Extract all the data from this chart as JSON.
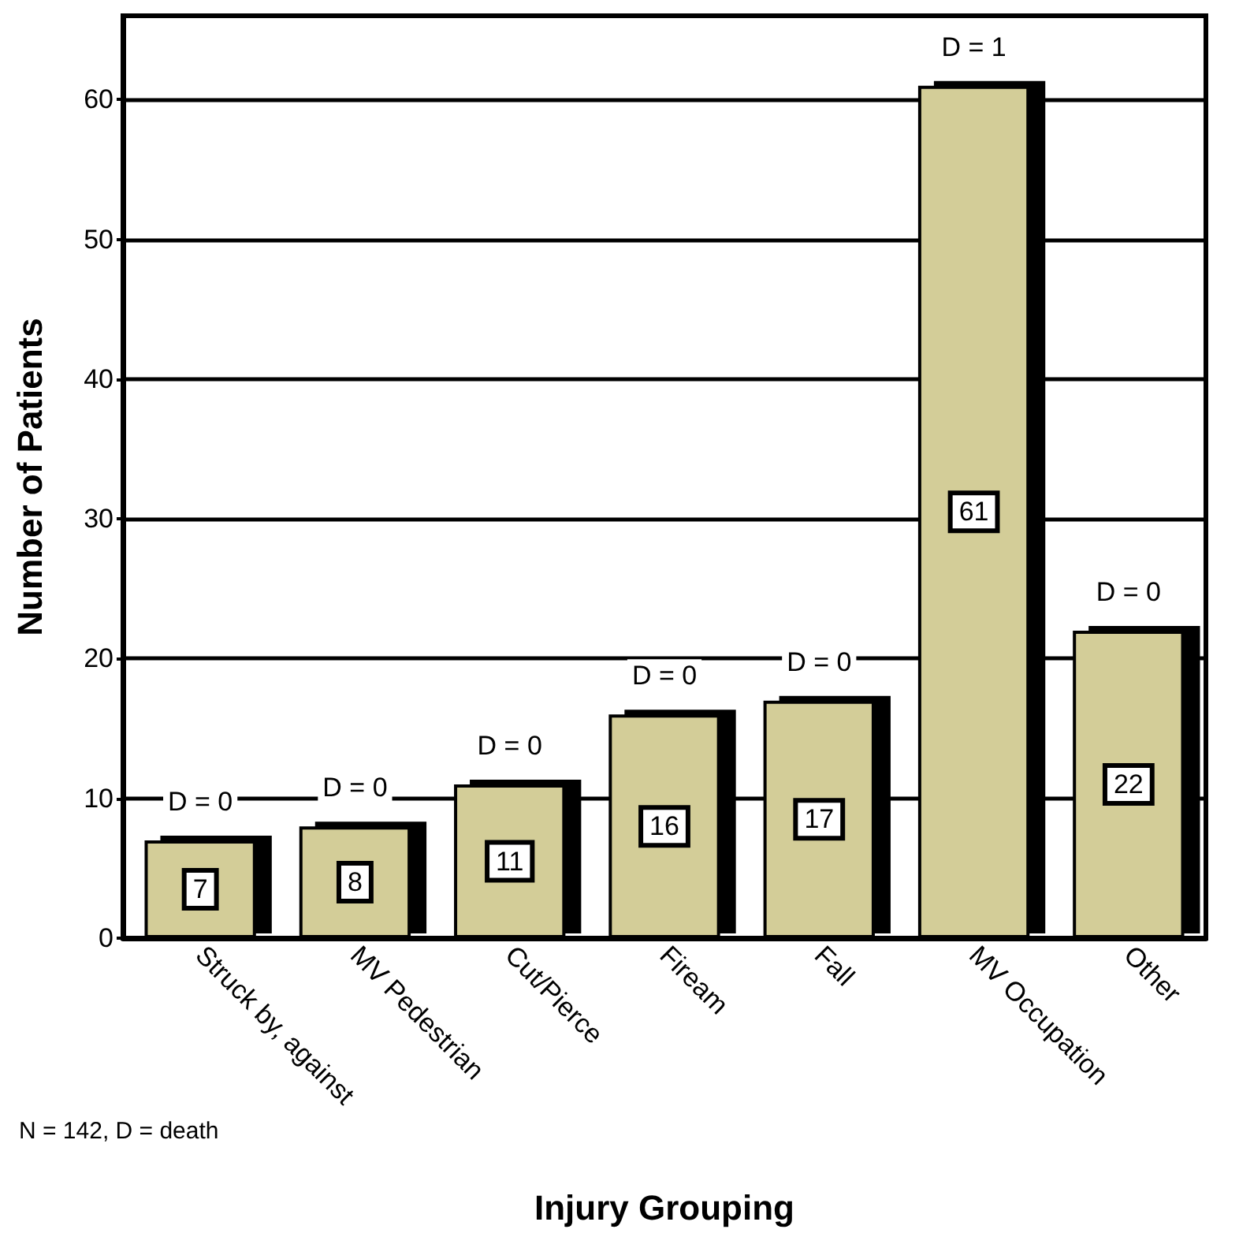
{
  "chart_data": {
    "type": "bar",
    "xlabel": "Injury Grouping",
    "ylabel": "Number of Patients",
    "categories": [
      "Struck by, against",
      "MV Pedestrian",
      "Cut/Pierce",
      "Fiream",
      "Fall",
      "MV Occupation",
      "Other"
    ],
    "values": [
      7,
      8,
      11,
      16,
      17,
      61,
      22
    ],
    "color": "#d3cd98",
    "data_labels": true,
    "ylim": [
      0,
      66
    ],
    "yticks": [
      0,
      10,
      20,
      30,
      40,
      50,
      60
    ],
    "grid": "y",
    "annotations": [
      {
        "text": "D = 0",
        "x": "Struck by, against",
        "y": 7
      },
      {
        "text": "D = 0",
        "x": "MV Pedestrian",
        "y": 8
      },
      {
        "text": "D = 0",
        "x": "Cut/Pierce",
        "y": 11
      },
      {
        "text": "D = 0",
        "x": "Fiream",
        "y": 16
      },
      {
        "text": "D = 0",
        "x": "Fall",
        "y": 17
      },
      {
        "text": "D = 1",
        "x": "MV Occupation",
        "y": 61
      },
      {
        "text": "D = 0",
        "x": "Other",
        "y": 22
      },
      "N = 142, D = death"
    ]
  }
}
